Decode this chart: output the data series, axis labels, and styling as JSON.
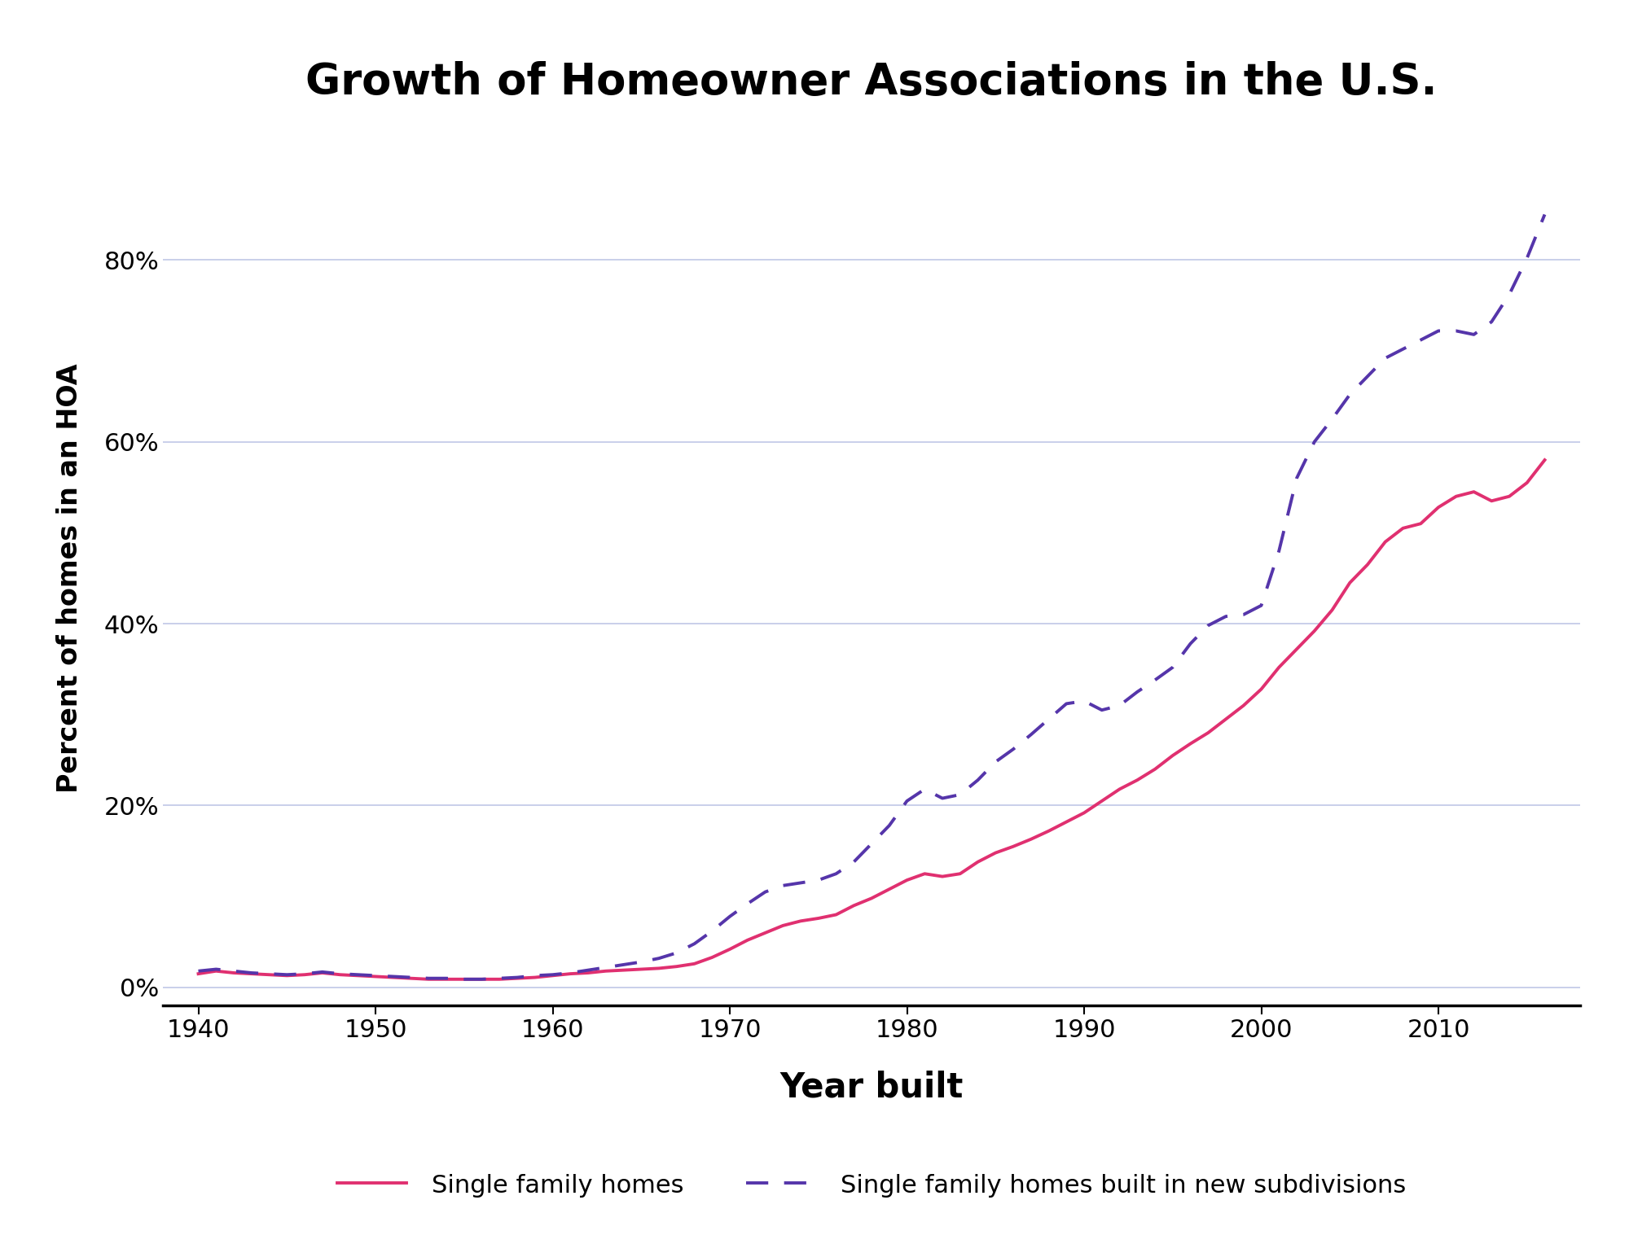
{
  "title": "Growth of Homeowner Associations in the U.S.",
  "xlabel": "Year built",
  "ylabel": "Percent of homes in an HOA",
  "title_fontsize": 38,
  "xlabel_fontsize": 30,
  "ylabel_fontsize": 24,
  "tick_fontsize": 22,
  "legend_fontsize": 22,
  "background_color": "#ffffff",
  "grid_color": "#c5cce8",
  "line1_color": "#e03070",
  "line2_color": "#5535aa",
  "line1_label": "Single family homes",
  "line2_label": "Single family homes built in new subdivisions",
  "xlim": [
    1938,
    2018
  ],
  "ylim": [
    -0.02,
    0.92
  ],
  "xticks": [
    1940,
    1950,
    1960,
    1970,
    1980,
    1990,
    2000,
    2010
  ],
  "yticks": [
    0.0,
    0.2,
    0.4,
    0.6,
    0.8
  ],
  "single_family_x": [
    1940,
    1941,
    1942,
    1943,
    1944,
    1945,
    1946,
    1947,
    1948,
    1949,
    1950,
    1951,
    1952,
    1953,
    1954,
    1955,
    1956,
    1957,
    1958,
    1959,
    1960,
    1961,
    1962,
    1963,
    1964,
    1965,
    1966,
    1967,
    1968,
    1969,
    1970,
    1971,
    1972,
    1973,
    1974,
    1975,
    1976,
    1977,
    1978,
    1979,
    1980,
    1981,
    1982,
    1983,
    1984,
    1985,
    1986,
    1987,
    1988,
    1989,
    1990,
    1991,
    1992,
    1993,
    1994,
    1995,
    1996,
    1997,
    1998,
    1999,
    2000,
    2001,
    2002,
    2003,
    2004,
    2005,
    2006,
    2007,
    2008,
    2009,
    2010,
    2011,
    2012,
    2013,
    2014,
    2015,
    2016
  ],
  "single_family_y": [
    0.015,
    0.018,
    0.016,
    0.015,
    0.014,
    0.013,
    0.014,
    0.016,
    0.014,
    0.013,
    0.012,
    0.011,
    0.01,
    0.009,
    0.009,
    0.009,
    0.009,
    0.009,
    0.01,
    0.011,
    0.013,
    0.015,
    0.016,
    0.018,
    0.019,
    0.02,
    0.021,
    0.023,
    0.026,
    0.033,
    0.042,
    0.052,
    0.06,
    0.068,
    0.073,
    0.076,
    0.08,
    0.09,
    0.098,
    0.108,
    0.118,
    0.125,
    0.122,
    0.125,
    0.138,
    0.148,
    0.155,
    0.163,
    0.172,
    0.182,
    0.192,
    0.205,
    0.218,
    0.228,
    0.24,
    0.255,
    0.268,
    0.28,
    0.295,
    0.31,
    0.328,
    0.352,
    0.372,
    0.392,
    0.415,
    0.445,
    0.465,
    0.49,
    0.505,
    0.51,
    0.528,
    0.54,
    0.545,
    0.535,
    0.54,
    0.555,
    0.58
  ],
  "subdivision_x": [
    1940,
    1941,
    1942,
    1943,
    1944,
    1945,
    1946,
    1947,
    1948,
    1949,
    1950,
    1951,
    1952,
    1953,
    1954,
    1955,
    1956,
    1957,
    1958,
    1959,
    1960,
    1961,
    1962,
    1963,
    1964,
    1965,
    1966,
    1967,
    1968,
    1969,
    1970,
    1971,
    1972,
    1973,
    1974,
    1975,
    1976,
    1977,
    1978,
    1979,
    1980,
    1981,
    1982,
    1983,
    1984,
    1985,
    1986,
    1987,
    1988,
    1989,
    1990,
    1991,
    1992,
    1993,
    1994,
    1995,
    1996,
    1997,
    1998,
    1999,
    2000,
    2001,
    2002,
    2003,
    2004,
    2005,
    2006,
    2007,
    2008,
    2009,
    2010,
    2011,
    2012,
    2013,
    2014,
    2015,
    2016
  ],
  "subdivision_y": [
    0.018,
    0.02,
    0.018,
    0.016,
    0.015,
    0.014,
    0.015,
    0.017,
    0.015,
    0.014,
    0.013,
    0.012,
    0.011,
    0.01,
    0.01,
    0.009,
    0.009,
    0.01,
    0.011,
    0.013,
    0.014,
    0.016,
    0.019,
    0.022,
    0.025,
    0.028,
    0.032,
    0.038,
    0.048,
    0.062,
    0.078,
    0.092,
    0.105,
    0.112,
    0.115,
    0.118,
    0.125,
    0.138,
    0.158,
    0.178,
    0.205,
    0.218,
    0.208,
    0.212,
    0.228,
    0.248,
    0.262,
    0.278,
    0.295,
    0.312,
    0.315,
    0.305,
    0.31,
    0.325,
    0.338,
    0.352,
    0.378,
    0.398,
    0.408,
    0.41,
    0.42,
    0.48,
    0.56,
    0.6,
    0.625,
    0.652,
    0.672,
    0.692,
    0.702,
    0.712,
    0.722,
    0.722,
    0.718,
    0.732,
    0.762,
    0.802,
    0.85
  ]
}
